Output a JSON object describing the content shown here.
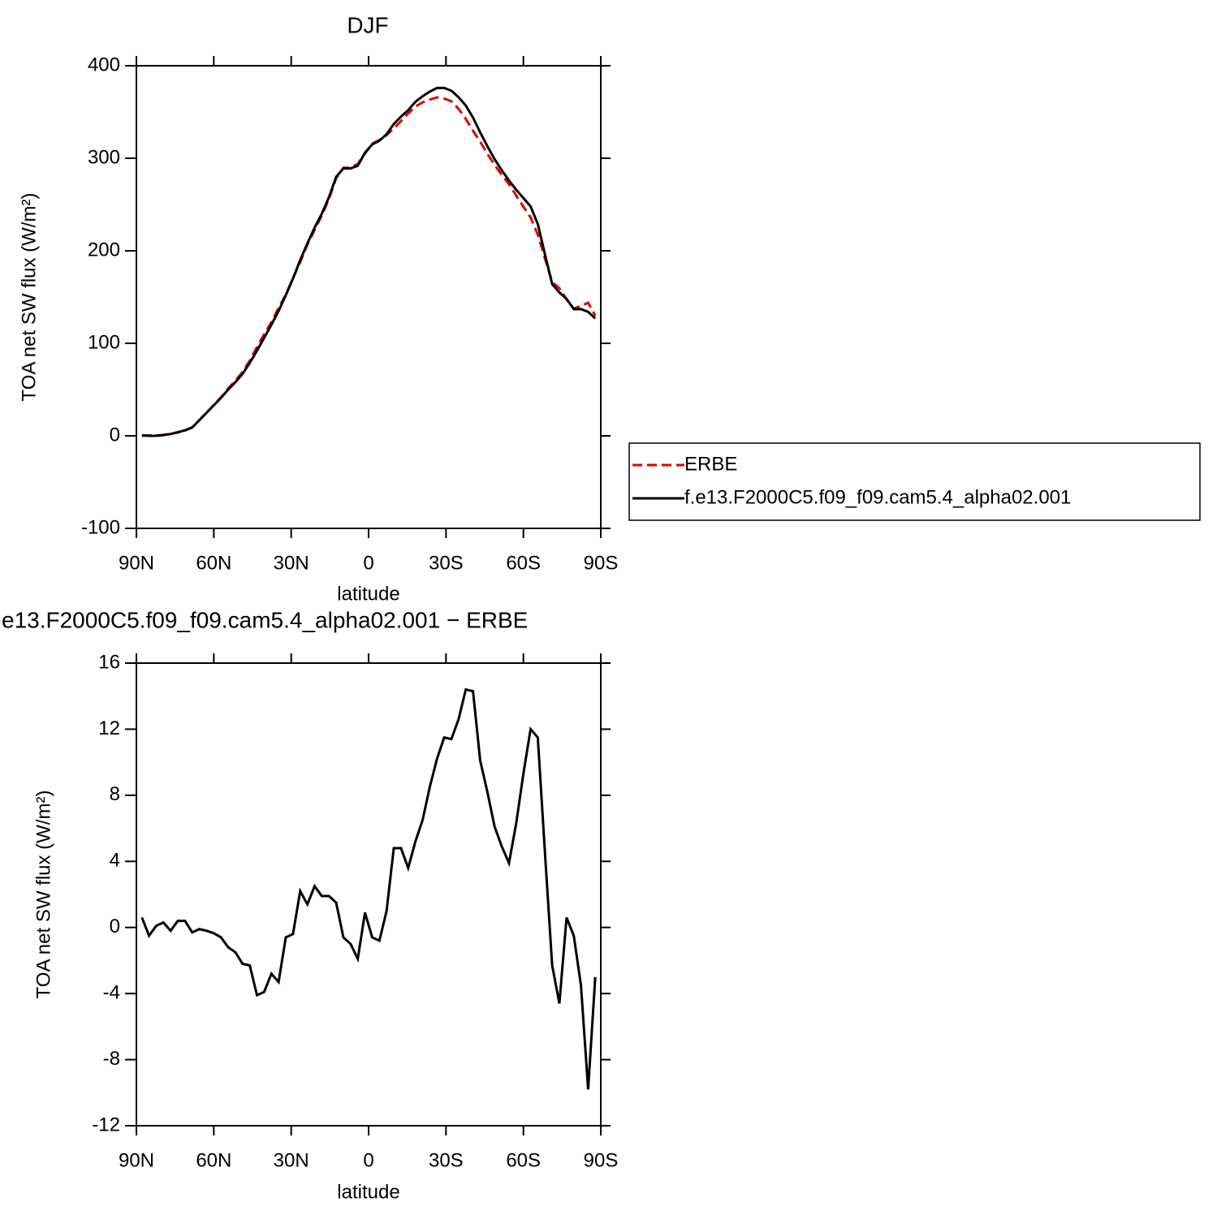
{
  "chart_data": [
    {
      "type": "line",
      "title": "DJF",
      "ylabel": "TOA net SW flux (W/m²)",
      "xlabel": "latitude",
      "x": [
        87.86,
        85.1,
        82.31,
        79.53,
        76.74,
        73.95,
        71.16,
        68.37,
        65.58,
        62.79,
        60.0,
        57.21,
        54.42,
        51.63,
        48.84,
        46.05,
        43.26,
        40.47,
        37.67,
        34.88,
        32.09,
        29.3,
        26.51,
        23.72,
        20.93,
        18.14,
        15.35,
        12.56,
        9.77,
        6.98,
        4.19,
        1.4,
        -1.4,
        -4.19,
        -6.98,
        -9.77,
        -12.56,
        -15.35,
        -18.14,
        -20.93,
        -23.72,
        -26.51,
        -29.3,
        -32.09,
        -34.88,
        -37.67,
        -40.47,
        -43.26,
        -46.05,
        -48.84,
        -51.63,
        -54.42,
        -57.21,
        -60.0,
        -62.79,
        -65.58,
        -68.37,
        -71.16,
        -73.95,
        -76.74,
        -79.53,
        -82.31,
        -85.1,
        -87.86
      ],
      "xlim": [
        90,
        -90
      ],
      "xticks": [
        {
          "value": 90,
          "label": "90N"
        },
        {
          "value": 60,
          "label": "60N"
        },
        {
          "value": 30,
          "label": "30N"
        },
        0,
        {
          "value": -30,
          "label": "30S"
        },
        {
          "value": -60,
          "label": "60S"
        },
        {
          "value": -90,
          "label": "90S"
        }
      ],
      "ylim": [
        -100,
        400
      ],
      "yticks": [
        -100,
        0,
        100,
        200,
        300,
        400
      ],
      "legend": "right",
      "series": [
        {
          "name": "ERBE",
          "color": "#e00000",
          "linestyle": "dashed",
          "values": [
            0,
            0.5,
            0,
            0.7,
            2.2,
            3.6,
            5.6,
            9.3,
            17.1,
            25.2,
            33.4,
            41.6,
            51.2,
            59.5,
            69.2,
            81.3,
            96.1,
            109.9,
            122.8,
            138.3,
            152.6,
            170.4,
            187.8,
            206.6,
            222.5,
            238.1,
            256.1,
            278.5,
            289.6,
            290,
            293.9,
            305.1,
            315.6,
            319.8,
            325,
            332.2,
            340.2,
            348.4,
            355.8,
            360.5,
            363.5,
            365.8,
            364.5,
            361.6,
            353.4,
            342.6,
            329.7,
            317.9,
            304.8,
            292.9,
            282.1,
            272.1,
            259.7,
            247.7,
            236,
            217.5,
            191.5,
            166.3,
            159.6,
            147.4,
            137.5,
            140.5,
            143.8,
            130
          ]
        },
        {
          "name": "f.e13.F2000C5.f09_f09.cam5.4_alpha02.001",
          "color": "#000000",
          "linestyle": "solid",
          "values": [
            0.6,
            0,
            0.1,
            1,
            2,
            4,
            6,
            9,
            17,
            25,
            33,
            41,
            50,
            58,
            67,
            79,
            92,
            106,
            120,
            135,
            152,
            170,
            190,
            208,
            225,
            240,
            258,
            280,
            289,
            289,
            292,
            306,
            315,
            319,
            326,
            337,
            345,
            352,
            361,
            367,
            372,
            376,
            376,
            373,
            366,
            357,
            344,
            328,
            313,
            299,
            287,
            276,
            266,
            257,
            248,
            229,
            196,
            164,
            155,
            148,
            137,
            137,
            134,
            127
          ]
        }
      ]
    },
    {
      "type": "line",
      "title": "e13.F2000C5.f09_f09.cam5.4_alpha02.001 − ERBE",
      "ylabel": "TOA net SW flux (W/m²)",
      "xlabel": "latitude",
      "x": [
        87.86,
        85.1,
        82.31,
        79.53,
        76.74,
        73.95,
        71.16,
        68.37,
        65.58,
        62.79,
        60.0,
        57.21,
        54.42,
        51.63,
        48.84,
        46.05,
        43.26,
        40.47,
        37.67,
        34.88,
        32.09,
        29.3,
        26.51,
        23.72,
        20.93,
        18.14,
        15.35,
        12.56,
        9.77,
        6.98,
        4.19,
        1.4,
        -1.4,
        -4.19,
        -6.98,
        -9.77,
        -12.56,
        -15.35,
        -18.14,
        -20.93,
        -23.72,
        -26.51,
        -29.3,
        -32.09,
        -34.88,
        -37.67,
        -40.47,
        -43.26,
        -46.05,
        -48.84,
        -51.63,
        -54.42,
        -57.21,
        -60.0,
        -62.79,
        -65.58,
        -68.37,
        -71.16,
        -73.95,
        -76.74,
        -79.53,
        -82.31,
        -85.1,
        -87.86
      ],
      "xlim": [
        90,
        -90
      ],
      "xticks": [
        {
          "value": 90,
          "label": "90N"
        },
        {
          "value": 60,
          "label": "60N"
        },
        {
          "value": 30,
          "label": "30N"
        },
        0,
        {
          "value": -30,
          "label": "30S"
        },
        {
          "value": -60,
          "label": "60S"
        },
        {
          "value": -90,
          "label": "90S"
        }
      ],
      "ylim": [
        -12,
        16
      ],
      "yticks": [
        -12,
        -8,
        -4,
        0,
        4,
        8,
        12,
        16
      ],
      "color": "#000000",
      "values": [
        0.6,
        -0.5,
        0.1,
        0.3,
        -0.2,
        0.4,
        0.4,
        -0.3,
        -0.1,
        -0.2,
        -0.35,
        -0.6,
        -1.2,
        -1.5,
        -2.2,
        -2.3,
        -4.1,
        -3.9,
        -2.8,
        -3.3,
        -0.6,
        -0.4,
        2.2,
        1.4,
        2.5,
        1.9,
        1.9,
        1.5,
        -0.6,
        -1,
        -1.9,
        0.9,
        -0.6,
        -0.8,
        1,
        4.8,
        4.8,
        3.6,
        5.2,
        6.5,
        8.5,
        10.2,
        11.5,
        11.4,
        12.6,
        14.4,
        14.3,
        10.1,
        8.2,
        6.1,
        4.9,
        3.9,
        6.3,
        9.3,
        12,
        11.5,
        4.5,
        -2.3,
        -4.6,
        0.6,
        -0.5,
        -3.5,
        -9.8,
        -3
      ]
    }
  ]
}
